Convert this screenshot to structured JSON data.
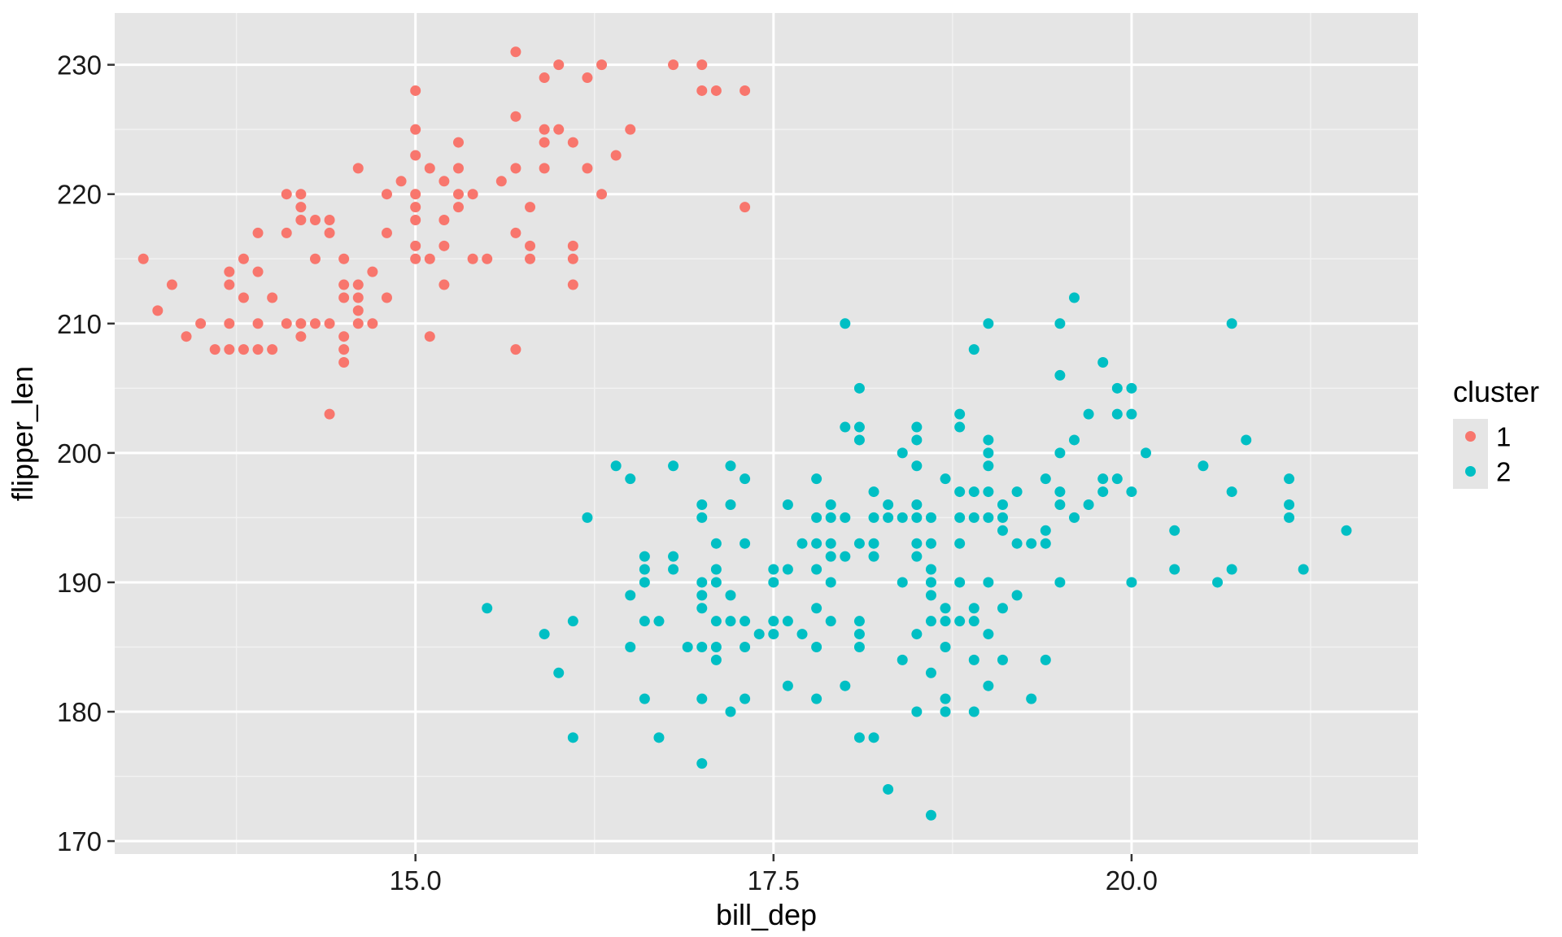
{
  "chart_data": {
    "type": "scatter",
    "title": "",
    "xlabel": "bill_dep",
    "ylabel": "flipper_len",
    "xlim": [
      12.9,
      22.0
    ],
    "ylim": [
      169,
      234
    ],
    "x_ticks": [
      15.0,
      17.5,
      20.0
    ],
    "x_tick_labels": [
      "15.0",
      "17.5",
      "20.0"
    ],
    "y_ticks": [
      170,
      180,
      190,
      200,
      210,
      220,
      230
    ],
    "y_tick_labels": [
      "170",
      "180",
      "190",
      "200",
      "210",
      "220",
      "230"
    ],
    "grid": true,
    "background": "#e5e5e5",
    "legend": {
      "title": "cluster",
      "position": "right",
      "entries": [
        {
          "label": "1",
          "color": "#f8766d"
        },
        {
          "label": "2",
          "color": "#00bfc4"
        }
      ]
    },
    "series": [
      {
        "name": "1",
        "color": "#f8766d",
        "points": [
          [
            13.1,
            215
          ],
          [
            13.2,
            211
          ],
          [
            13.3,
            213
          ],
          [
            13.4,
            209
          ],
          [
            13.5,
            210
          ],
          [
            13.6,
            208
          ],
          [
            13.7,
            208
          ],
          [
            13.7,
            214
          ],
          [
            13.7,
            213
          ],
          [
            13.7,
            210
          ],
          [
            13.8,
            208
          ],
          [
            13.8,
            215
          ],
          [
            13.8,
            212
          ],
          [
            13.9,
            208
          ],
          [
            13.9,
            217
          ],
          [
            13.9,
            214
          ],
          [
            13.9,
            210
          ],
          [
            14.0,
            208
          ],
          [
            14.0,
            212
          ],
          [
            14.1,
            217
          ],
          [
            14.1,
            210
          ],
          [
            14.1,
            220
          ],
          [
            14.2,
            209
          ],
          [
            14.2,
            210
          ],
          [
            14.2,
            219
          ],
          [
            14.2,
            220
          ],
          [
            14.2,
            218
          ],
          [
            14.3,
            218
          ],
          [
            14.3,
            215
          ],
          [
            14.3,
            210
          ],
          [
            14.4,
            218
          ],
          [
            14.4,
            217
          ],
          [
            14.4,
            210
          ],
          [
            14.4,
            203
          ],
          [
            14.5,
            215
          ],
          [
            14.5,
            213
          ],
          [
            14.5,
            212
          ],
          [
            14.5,
            209
          ],
          [
            14.5,
            208
          ],
          [
            14.5,
            207
          ],
          [
            14.6,
            222
          ],
          [
            14.6,
            213
          ],
          [
            14.6,
            212
          ],
          [
            14.6,
            211
          ],
          [
            14.6,
            210
          ],
          [
            14.7,
            214
          ],
          [
            14.7,
            210
          ],
          [
            14.8,
            220
          ],
          [
            14.8,
            217
          ],
          [
            14.8,
            212
          ],
          [
            14.9,
            221
          ],
          [
            15.0,
            228
          ],
          [
            15.0,
            225
          ],
          [
            15.0,
            223
          ],
          [
            15.0,
            220
          ],
          [
            15.0,
            219
          ],
          [
            15.0,
            218
          ],
          [
            15.0,
            216
          ],
          [
            15.0,
            215
          ],
          [
            15.1,
            222
          ],
          [
            15.1,
            215
          ],
          [
            15.1,
            209
          ],
          [
            15.2,
            221
          ],
          [
            15.2,
            218
          ],
          [
            15.2,
            216
          ],
          [
            15.2,
            213
          ],
          [
            15.3,
            224
          ],
          [
            15.3,
            222
          ],
          [
            15.3,
            220
          ],
          [
            15.3,
            219
          ],
          [
            15.4,
            220
          ],
          [
            15.4,
            215
          ],
          [
            15.5,
            215
          ],
          [
            15.6,
            221
          ],
          [
            15.7,
            231
          ],
          [
            15.7,
            226
          ],
          [
            15.7,
            222
          ],
          [
            15.7,
            217
          ],
          [
            15.7,
            208
          ],
          [
            15.8,
            219
          ],
          [
            15.8,
            216
          ],
          [
            15.8,
            215
          ],
          [
            15.9,
            229
          ],
          [
            15.9,
            225
          ],
          [
            15.9,
            224
          ],
          [
            15.9,
            222
          ],
          [
            16.0,
            230
          ],
          [
            16.0,
            225
          ],
          [
            16.1,
            224
          ],
          [
            16.1,
            216
          ],
          [
            16.1,
            215
          ],
          [
            16.1,
            213
          ],
          [
            16.2,
            229
          ],
          [
            16.2,
            222
          ],
          [
            16.3,
            230
          ],
          [
            16.3,
            220
          ],
          [
            16.4,
            223
          ],
          [
            16.5,
            225
          ],
          [
            16.8,
            230
          ],
          [
            17.0,
            230
          ],
          [
            17.0,
            228
          ],
          [
            17.1,
            228
          ],
          [
            17.3,
            228
          ],
          [
            17.3,
            219
          ]
        ]
      },
      {
        "name": "2",
        "color": "#00bfc4",
        "points": [
          [
            15.5,
            188
          ],
          [
            15.9,
            186
          ],
          [
            16.0,
            183
          ],
          [
            16.1,
            187
          ],
          [
            16.1,
            178
          ],
          [
            16.2,
            195
          ],
          [
            16.4,
            199
          ],
          [
            16.5,
            198
          ],
          [
            16.5,
            189
          ],
          [
            16.5,
            185
          ],
          [
            16.6,
            192
          ],
          [
            16.6,
            191
          ],
          [
            16.6,
            190
          ],
          [
            16.6,
            187
          ],
          [
            16.6,
            181
          ],
          [
            16.7,
            187
          ],
          [
            16.7,
            178
          ],
          [
            16.8,
            199
          ],
          [
            16.8,
            192
          ],
          [
            16.8,
            191
          ],
          [
            16.9,
            185
          ],
          [
            17.0,
            196
          ],
          [
            17.0,
            195
          ],
          [
            17.0,
            190
          ],
          [
            17.0,
            189
          ],
          [
            17.0,
            188
          ],
          [
            17.0,
            185
          ],
          [
            17.0,
            181
          ],
          [
            17.0,
            176
          ],
          [
            17.1,
            190
          ],
          [
            17.1,
            187
          ],
          [
            17.1,
            185
          ],
          [
            17.1,
            184
          ],
          [
            17.1,
            191
          ],
          [
            17.1,
            193
          ],
          [
            17.2,
            199
          ],
          [
            17.2,
            196
          ],
          [
            17.2,
            189
          ],
          [
            17.2,
            187
          ],
          [
            17.2,
            180
          ],
          [
            17.3,
            198
          ],
          [
            17.3,
            193
          ],
          [
            17.3,
            187
          ],
          [
            17.3,
            185
          ],
          [
            17.3,
            181
          ],
          [
            17.4,
            186
          ],
          [
            17.5,
            191
          ],
          [
            17.5,
            190
          ],
          [
            17.5,
            187
          ],
          [
            17.5,
            186
          ],
          [
            17.6,
            196
          ],
          [
            17.6,
            191
          ],
          [
            17.6,
            187
          ],
          [
            17.6,
            182
          ],
          [
            17.7,
            193
          ],
          [
            17.7,
            186
          ],
          [
            17.8,
            198
          ],
          [
            17.8,
            195
          ],
          [
            17.8,
            193
          ],
          [
            17.8,
            191
          ],
          [
            17.8,
            188
          ],
          [
            17.8,
            185
          ],
          [
            17.8,
            181
          ],
          [
            17.9,
            196
          ],
          [
            17.9,
            195
          ],
          [
            17.9,
            193
          ],
          [
            17.9,
            192
          ],
          [
            17.9,
            190
          ],
          [
            17.9,
            187
          ],
          [
            18.0,
            210
          ],
          [
            18.0,
            202
          ],
          [
            18.0,
            195
          ],
          [
            18.0,
            192
          ],
          [
            18.0,
            182
          ],
          [
            18.1,
            205
          ],
          [
            18.1,
            202
          ],
          [
            18.1,
            201
          ],
          [
            18.1,
            193
          ],
          [
            18.1,
            187
          ],
          [
            18.1,
            186
          ],
          [
            18.1,
            185
          ],
          [
            18.1,
            178
          ],
          [
            18.2,
            197
          ],
          [
            18.2,
            195
          ],
          [
            18.2,
            193
          ],
          [
            18.2,
            192
          ],
          [
            18.2,
            178
          ],
          [
            18.3,
            196
          ],
          [
            18.3,
            195
          ],
          [
            18.3,
            174
          ],
          [
            18.4,
            200
          ],
          [
            18.4,
            195
          ],
          [
            18.4,
            190
          ],
          [
            18.4,
            184
          ],
          [
            18.5,
            202
          ],
          [
            18.5,
            201
          ],
          [
            18.5,
            199
          ],
          [
            18.5,
            196
          ],
          [
            18.5,
            195
          ],
          [
            18.5,
            193
          ],
          [
            18.5,
            192
          ],
          [
            18.5,
            186
          ],
          [
            18.5,
            180
          ],
          [
            18.6,
            195
          ],
          [
            18.6,
            193
          ],
          [
            18.6,
            191
          ],
          [
            18.6,
            190
          ],
          [
            18.6,
            189
          ],
          [
            18.6,
            187
          ],
          [
            18.6,
            183
          ],
          [
            18.6,
            172
          ],
          [
            18.7,
            198
          ],
          [
            18.7,
            188
          ],
          [
            18.7,
            187
          ],
          [
            18.7,
            185
          ],
          [
            18.7,
            181
          ],
          [
            18.7,
            180
          ],
          [
            18.8,
            203
          ],
          [
            18.8,
            202
          ],
          [
            18.8,
            197
          ],
          [
            18.8,
            195
          ],
          [
            18.8,
            193
          ],
          [
            18.8,
            190
          ],
          [
            18.8,
            187
          ],
          [
            18.9,
            208
          ],
          [
            18.9,
            197
          ],
          [
            18.9,
            195
          ],
          [
            18.9,
            188
          ],
          [
            18.9,
            187
          ],
          [
            18.9,
            184
          ],
          [
            18.9,
            180
          ],
          [
            19.0,
            210
          ],
          [
            19.0,
            201
          ],
          [
            19.0,
            200
          ],
          [
            19.0,
            199
          ],
          [
            19.0,
            197
          ],
          [
            19.0,
            195
          ],
          [
            19.0,
            190
          ],
          [
            19.0,
            186
          ],
          [
            19.0,
            182
          ],
          [
            19.1,
            196
          ],
          [
            19.1,
            195
          ],
          [
            19.1,
            194
          ],
          [
            19.1,
            188
          ],
          [
            19.1,
            184
          ],
          [
            19.2,
            197
          ],
          [
            19.2,
            193
          ],
          [
            19.2,
            189
          ],
          [
            19.3,
            193
          ],
          [
            19.3,
            181
          ],
          [
            19.4,
            198
          ],
          [
            19.4,
            194
          ],
          [
            19.4,
            193
          ],
          [
            19.4,
            184
          ],
          [
            19.5,
            210
          ],
          [
            19.5,
            206
          ],
          [
            19.5,
            200
          ],
          [
            19.5,
            197
          ],
          [
            19.5,
            196
          ],
          [
            19.5,
            190
          ],
          [
            19.6,
            212
          ],
          [
            19.6,
            201
          ],
          [
            19.6,
            195
          ],
          [
            19.7,
            203
          ],
          [
            19.7,
            196
          ],
          [
            19.8,
            207
          ],
          [
            19.8,
            198
          ],
          [
            19.8,
            197
          ],
          [
            19.9,
            205
          ],
          [
            19.9,
            203
          ],
          [
            19.9,
            198
          ],
          [
            20.0,
            205
          ],
          [
            20.0,
            203
          ],
          [
            20.0,
            197
          ],
          [
            20.0,
            190
          ],
          [
            20.1,
            200
          ],
          [
            20.3,
            194
          ],
          [
            20.3,
            191
          ],
          [
            20.5,
            199
          ],
          [
            20.6,
            190
          ],
          [
            20.7,
            210
          ],
          [
            20.7,
            197
          ],
          [
            20.7,
            191
          ],
          [
            20.8,
            201
          ],
          [
            21.1,
            198
          ],
          [
            21.1,
            196
          ],
          [
            21.1,
            195
          ],
          [
            21.2,
            191
          ],
          [
            21.5,
            194
          ]
        ]
      }
    ]
  }
}
